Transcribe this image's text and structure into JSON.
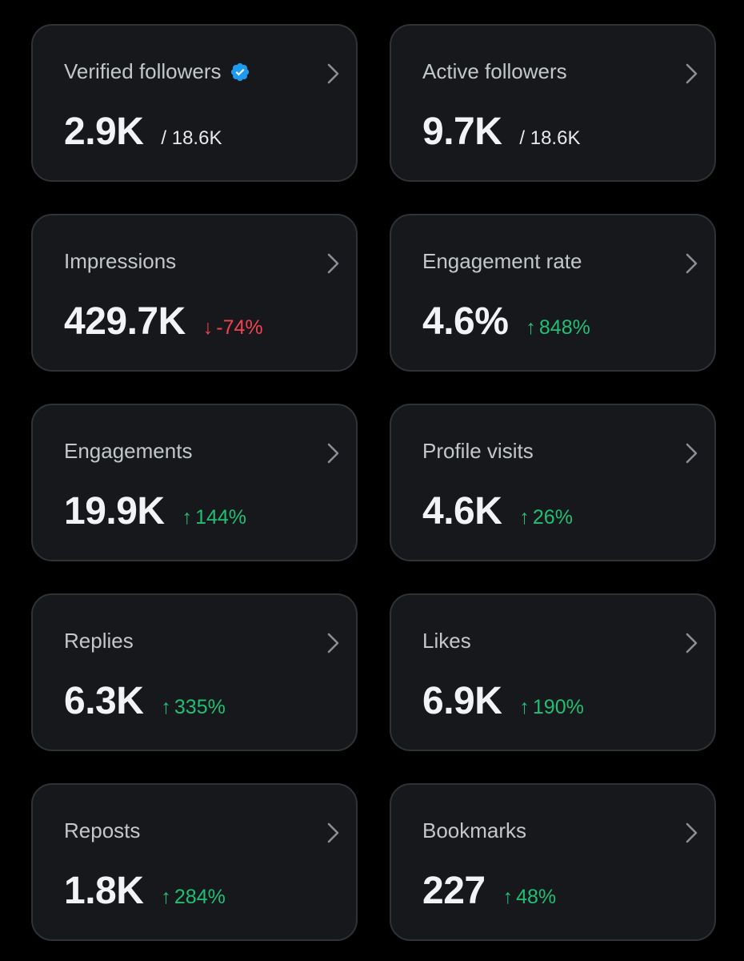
{
  "colors": {
    "background": "#000000",
    "card": "#16181c",
    "card_border": "#2f3336",
    "label": "#c4c7ca",
    "value": "#f2f3f4",
    "positive": "#1fbf74",
    "negative": "#f4414d",
    "verified_badge": "#1d9bf0"
  },
  "cards": [
    {
      "id": "verified-followers",
      "label": "Verified followers",
      "value": "2.9K",
      "total": "/ 18.6K",
      "verified_badge": true
    },
    {
      "id": "active-followers",
      "label": "Active followers",
      "value": "9.7K",
      "total": "/ 18.6K"
    },
    {
      "id": "impressions",
      "label": "Impressions",
      "value": "429.7K",
      "change": {
        "direction": "down",
        "arrow": "↓",
        "text": "-74%"
      }
    },
    {
      "id": "engagement-rate",
      "label": "Engagement rate",
      "value": "4.6%",
      "change": {
        "direction": "up",
        "arrow": "↑",
        "text": "848%"
      }
    },
    {
      "id": "engagements",
      "label": "Engagements",
      "value": "19.9K",
      "change": {
        "direction": "up",
        "arrow": "↑",
        "text": "144%"
      }
    },
    {
      "id": "profile-visits",
      "label": "Profile visits",
      "value": "4.6K",
      "change": {
        "direction": "up",
        "arrow": "↑",
        "text": "26%"
      }
    },
    {
      "id": "replies",
      "label": "Replies",
      "value": "6.3K",
      "change": {
        "direction": "up",
        "arrow": "↑",
        "text": "335%"
      }
    },
    {
      "id": "likes",
      "label": "Likes",
      "value": "6.9K",
      "change": {
        "direction": "up",
        "arrow": "↑",
        "text": "190%"
      }
    },
    {
      "id": "reposts",
      "label": "Reposts",
      "value": "1.8K",
      "change": {
        "direction": "up",
        "arrow": "↑",
        "text": "284%"
      }
    },
    {
      "id": "bookmarks",
      "label": "Bookmarks",
      "value": "227",
      "change": {
        "direction": "up",
        "arrow": "↑",
        "text": "48%"
      }
    }
  ],
  "icons": {
    "chevron": "chevron-right-icon",
    "verified": "verified-badge-icon"
  }
}
